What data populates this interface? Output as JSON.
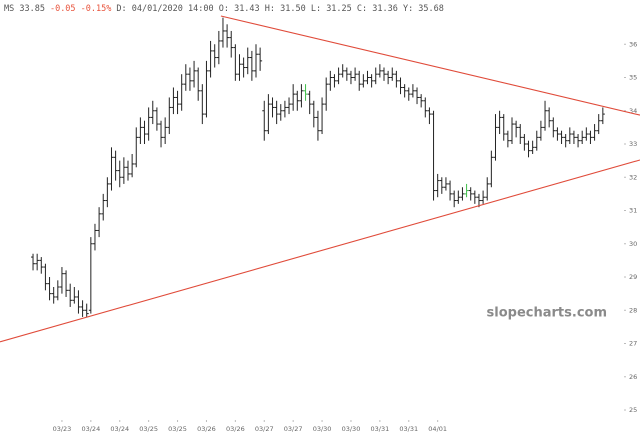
{
  "chart_data": {
    "type": "ohlc",
    "header": [
      {
        "text": "MS 33.85",
        "color": "#555555"
      },
      {
        "text": "-0.05 -0.15%",
        "color": "#e8553e"
      },
      {
        "text": "D: 04/01/2020 14:00  O: 31.43  H: 31.50  L: 31.25  C: 31.36  Y: 35.68",
        "color": "#555555"
      }
    ],
    "watermark": "slopecharts.com",
    "color": "#222222",
    "highlight": [
      66,
      105
    ],
    "highlight_color": "#3fbf4a",
    "xlim": [
      -8,
      147
    ],
    "ylim": [
      24.7,
      37
    ],
    "yticks": [
      25,
      26,
      27,
      28,
      29,
      30,
      31,
      32,
      33,
      34,
      35,
      36
    ],
    "xticks": [
      {
        "value": 7,
        "label": "03/23"
      },
      {
        "value": 14,
        "label": "03/24"
      },
      {
        "value": 21,
        "label": "03/24"
      },
      {
        "value": 28,
        "label": "03/25"
      },
      {
        "value": 35,
        "label": "03/25"
      },
      {
        "value": 42,
        "label": "03/26"
      },
      {
        "value": 49,
        "label": "03/26"
      },
      {
        "value": 56,
        "label": "03/27"
      },
      {
        "value": 63,
        "label": "03/27"
      },
      {
        "value": 70,
        "label": "03/30"
      },
      {
        "value": 77,
        "label": "03/30"
      },
      {
        "value": 84,
        "label": "03/31"
      },
      {
        "value": 91,
        "label": "03/31"
      },
      {
        "value": 98,
        "label": "04/01"
      }
    ],
    "trendlines": [
      {
        "color": "#e04b3a",
        "points": [
          [
            45.5,
            36.85
          ],
          [
            147,
            33.87
          ]
        ]
      },
      {
        "color": "#e04b3a",
        "points": [
          [
            -8,
            27.05
          ],
          [
            147,
            32.52
          ]
        ]
      }
    ],
    "ohlc": [
      [
        29.6,
        29.7,
        29.2,
        29.4
      ],
      [
        29.4,
        29.7,
        29.2,
        29.5
      ],
      [
        29.5,
        29.6,
        29.1,
        29.3
      ],
      [
        29.3,
        29.4,
        28.6,
        28.8
      ],
      [
        28.8,
        29.0,
        28.3,
        28.5
      ],
      [
        28.5,
        28.7,
        28.2,
        28.4
      ],
      [
        28.4,
        28.9,
        28.3,
        28.7
      ],
      [
        28.7,
        29.3,
        28.5,
        29.1
      ],
      [
        29.1,
        29.2,
        28.4,
        28.6
      ],
      [
        28.6,
        28.8,
        28.1,
        28.3
      ],
      [
        28.3,
        28.7,
        28.2,
        28.4
      ],
      [
        28.4,
        28.6,
        27.9,
        28.1
      ],
      [
        28.1,
        28.3,
        27.8,
        28.0
      ],
      [
        28.0,
        28.2,
        27.8,
        27.9
      ],
      [
        28.0,
        30.2,
        27.9,
        30.0
      ],
      [
        30.0,
        30.6,
        29.8,
        30.4
      ],
      [
        30.4,
        31.1,
        30.2,
        30.9
      ],
      [
        30.9,
        31.5,
        30.7,
        31.3
      ],
      [
        31.3,
        32.0,
        31.1,
        31.8
      ],
      [
        31.8,
        32.9,
        31.6,
        32.6
      ],
      [
        32.6,
        32.8,
        31.9,
        32.2
      ],
      [
        32.2,
        32.5,
        31.7,
        32.0
      ],
      [
        32.0,
        32.6,
        31.8,
        32.3
      ],
      [
        32.3,
        32.5,
        31.9,
        32.1
      ],
      [
        32.1,
        32.7,
        32.0,
        32.4
      ],
      [
        32.4,
        33.5,
        32.3,
        33.2
      ],
      [
        33.2,
        33.8,
        33.0,
        33.5
      ],
      [
        33.5,
        33.7,
        33.0,
        33.3
      ],
      [
        33.3,
        34.1,
        33.1,
        33.8
      ],
      [
        33.8,
        34.3,
        33.6,
        34.0
      ],
      [
        34.0,
        34.1,
        33.4,
        33.6
      ],
      [
        33.6,
        33.7,
        32.9,
        33.2
      ],
      [
        33.2,
        33.8,
        33.0,
        33.5
      ],
      [
        33.5,
        34.4,
        33.3,
        34.1
      ],
      [
        34.1,
        34.7,
        33.9,
        34.4
      ],
      [
        34.4,
        34.6,
        33.9,
        34.2
      ],
      [
        34.2,
        35.1,
        34.0,
        34.8
      ],
      [
        34.8,
        35.4,
        34.6,
        35.1
      ],
      [
        35.1,
        35.3,
        34.6,
        34.9
      ],
      [
        34.9,
        35.5,
        34.7,
        35.2
      ],
      [
        35.2,
        35.3,
        34.3,
        34.6
      ],
      [
        34.6,
        34.8,
        33.6,
        33.9
      ],
      [
        33.9,
        35.5,
        33.8,
        35.2
      ],
      [
        35.2,
        36.1,
        35.0,
        35.8
      ],
      [
        35.8,
        36.0,
        35.3,
        35.6
      ],
      [
        35.6,
        36.4,
        35.4,
        36.1
      ],
      [
        36.1,
        36.8,
        35.9,
        36.4
      ],
      [
        36.4,
        36.6,
        35.9,
        36.2
      ],
      [
        36.2,
        36.4,
        35.6,
        35.9
      ],
      [
        35.9,
        36.0,
        34.9,
        35.1
      ],
      [
        35.1,
        35.7,
        34.9,
        35.4
      ],
      [
        35.4,
        35.6,
        35.0,
        35.3
      ],
      [
        35.3,
        35.9,
        35.1,
        35.6
      ],
      [
        35.6,
        35.8,
        34.9,
        35.2
      ],
      [
        35.2,
        36.0,
        35.0,
        35.7
      ],
      [
        35.7,
        35.9,
        35.2,
        35.5
      ],
      [
        34.0,
        34.3,
        33.1,
        33.4
      ],
      [
        33.4,
        34.5,
        33.3,
        34.2
      ],
      [
        34.2,
        34.4,
        33.8,
        34.1
      ],
      [
        34.1,
        34.3,
        33.6,
        33.9
      ],
      [
        33.9,
        34.2,
        33.7,
        34.0
      ],
      [
        34.0,
        34.3,
        33.8,
        34.1
      ],
      [
        34.1,
        34.4,
        33.9,
        34.2
      ],
      [
        34.2,
        34.8,
        34.0,
        34.5
      ],
      [
        34.5,
        34.6,
        34.0,
        34.3
      ],
      [
        34.3,
        34.8,
        34.1,
        34.6
      ],
      [
        34.6,
        34.8,
        34.3,
        34.5
      ],
      [
        34.5,
        34.6,
        33.9,
        34.2
      ],
      [
        34.2,
        34.3,
        33.5,
        33.8
      ],
      [
        33.8,
        34.0,
        33.1,
        33.4
      ],
      [
        33.4,
        34.4,
        33.3,
        34.2
      ],
      [
        34.2,
        35.0,
        34.0,
        34.8
      ],
      [
        34.8,
        35.2,
        34.6,
        35.0
      ],
      [
        35.0,
        35.1,
        34.7,
        34.9
      ],
      [
        34.9,
        35.3,
        34.8,
        35.1
      ],
      [
        35.1,
        35.4,
        35.0,
        35.2
      ],
      [
        35.2,
        35.3,
        34.9,
        35.1
      ],
      [
        35.1,
        35.2,
        34.8,
        35.0
      ],
      [
        35.0,
        35.3,
        34.9,
        35.1
      ],
      [
        35.1,
        35.2,
        34.6,
        34.8
      ],
      [
        34.8,
        35.1,
        34.7,
        34.9
      ],
      [
        34.9,
        35.2,
        34.8,
        35.0
      ],
      [
        35.0,
        35.1,
        34.7,
        34.9
      ],
      [
        34.9,
        35.3,
        34.8,
        35.1
      ],
      [
        35.1,
        35.4,
        35.0,
        35.2
      ],
      [
        35.2,
        35.3,
        34.9,
        35.1
      ],
      [
        35.1,
        35.2,
        34.8,
        35.0
      ],
      [
        35.0,
        35.3,
        34.9,
        35.1
      ],
      [
        35.1,
        35.2,
        34.7,
        34.9
      ],
      [
        34.9,
        35.0,
        34.5,
        34.7
      ],
      [
        34.7,
        34.8,
        34.4,
        34.6
      ],
      [
        34.6,
        34.7,
        34.3,
        34.5
      ],
      [
        34.5,
        34.8,
        34.4,
        34.6
      ],
      [
        34.6,
        34.7,
        34.2,
        34.4
      ],
      [
        34.4,
        34.5,
        34.1,
        34.3
      ],
      [
        34.3,
        34.4,
        33.8,
        34.0
      ],
      [
        34.0,
        34.1,
        33.6,
        33.9
      ],
      [
        33.9,
        34.0,
        31.3,
        31.6
      ],
      [
        31.6,
        32.1,
        31.4,
        31.9
      ],
      [
        31.9,
        32.0,
        31.5,
        31.7
      ],
      [
        31.7,
        32.0,
        31.6,
        31.8
      ],
      [
        31.8,
        31.9,
        31.3,
        31.5
      ],
      [
        31.5,
        31.6,
        31.1,
        31.3
      ],
      [
        31.3,
        31.6,
        31.2,
        31.4
      ],
      [
        31.4,
        31.7,
        31.3,
        31.5
      ],
      [
        31.5,
        31.8,
        31.4,
        31.6
      ],
      [
        31.6,
        31.7,
        31.3,
        31.5
      ],
      [
        31.5,
        31.6,
        31.2,
        31.4
      ],
      [
        31.4,
        31.5,
        31.1,
        31.3
      ],
      [
        31.3,
        31.6,
        31.2,
        31.4
      ],
      [
        31.4,
        32.0,
        31.3,
        31.8
      ],
      [
        31.8,
        32.8,
        31.7,
        32.6
      ],
      [
        32.6,
        33.9,
        32.5,
        33.5
      ],
      [
        33.5,
        34.0,
        33.3,
        33.8
      ],
      [
        33.8,
        33.9,
        33.1,
        33.3
      ],
      [
        33.3,
        33.4,
        32.9,
        33.1
      ],
      [
        33.1,
        33.8,
        33.0,
        33.6
      ],
      [
        33.6,
        33.7,
        33.2,
        33.5
      ],
      [
        33.5,
        33.6,
        33.0,
        33.2
      ],
      [
        33.2,
        33.3,
        32.8,
        33.0
      ],
      [
        33.0,
        33.1,
        32.6,
        32.8
      ],
      [
        32.8,
        33.1,
        32.7,
        32.9
      ],
      [
        32.9,
        33.4,
        32.8,
        33.2
      ],
      [
        33.2,
        33.7,
        33.1,
        33.5
      ],
      [
        33.5,
        34.3,
        33.4,
        34.0
      ],
      [
        34.0,
        34.1,
        33.5,
        33.7
      ],
      [
        33.7,
        33.8,
        33.2,
        33.4
      ],
      [
        33.4,
        33.5,
        33.1,
        33.3
      ],
      [
        33.3,
        33.4,
        33.0,
        33.2
      ],
      [
        33.2,
        33.3,
        32.9,
        33.1
      ],
      [
        33.1,
        33.5,
        33.0,
        33.3
      ],
      [
        33.3,
        33.4,
        33.0,
        33.2
      ],
      [
        33.2,
        33.3,
        32.9,
        33.1
      ],
      [
        33.1,
        33.4,
        33.0,
        33.2
      ],
      [
        33.2,
        33.5,
        33.1,
        33.3
      ],
      [
        33.3,
        33.4,
        33.0,
        33.2
      ],
      [
        33.2,
        33.6,
        33.1,
        33.4
      ],
      [
        33.4,
        33.9,
        33.3,
        33.7
      ],
      [
        33.7,
        34.1,
        33.6,
        33.9
      ]
    ]
  }
}
